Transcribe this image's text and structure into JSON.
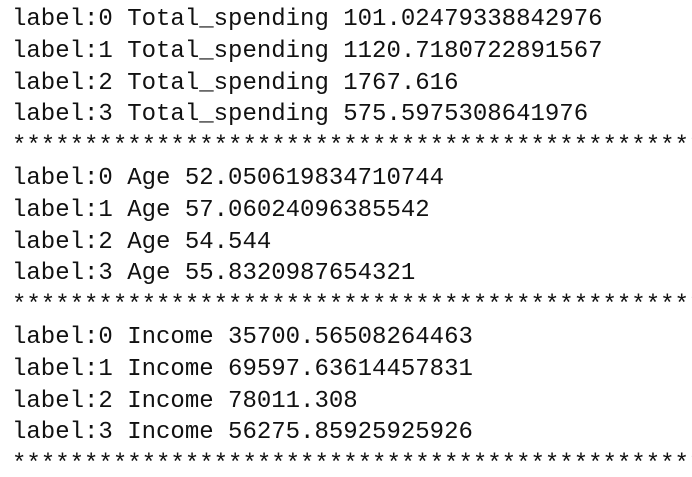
{
  "console": {
    "lines": [
      "label:0 Total_spending 101.02479338842976",
      "label:1 Total_spending 1120.7180722891567",
      "label:2 Total_spending 1767.616",
      "label:3 Total_spending 575.5975308641976",
      "************************************************",
      "label:0 Age 52.050619834710744",
      "label:1 Age 57.06024096385542",
      "label:2 Age 54.544",
      "label:3 Age 55.8320987654321",
      "************************************************",
      "label:0 Income 35700.56508264463",
      "label:1 Income 69597.63614457831",
      "label:2 Income 78011.308",
      "label:3 Income 56275.85925925926",
      "************************************************"
    ]
  }
}
